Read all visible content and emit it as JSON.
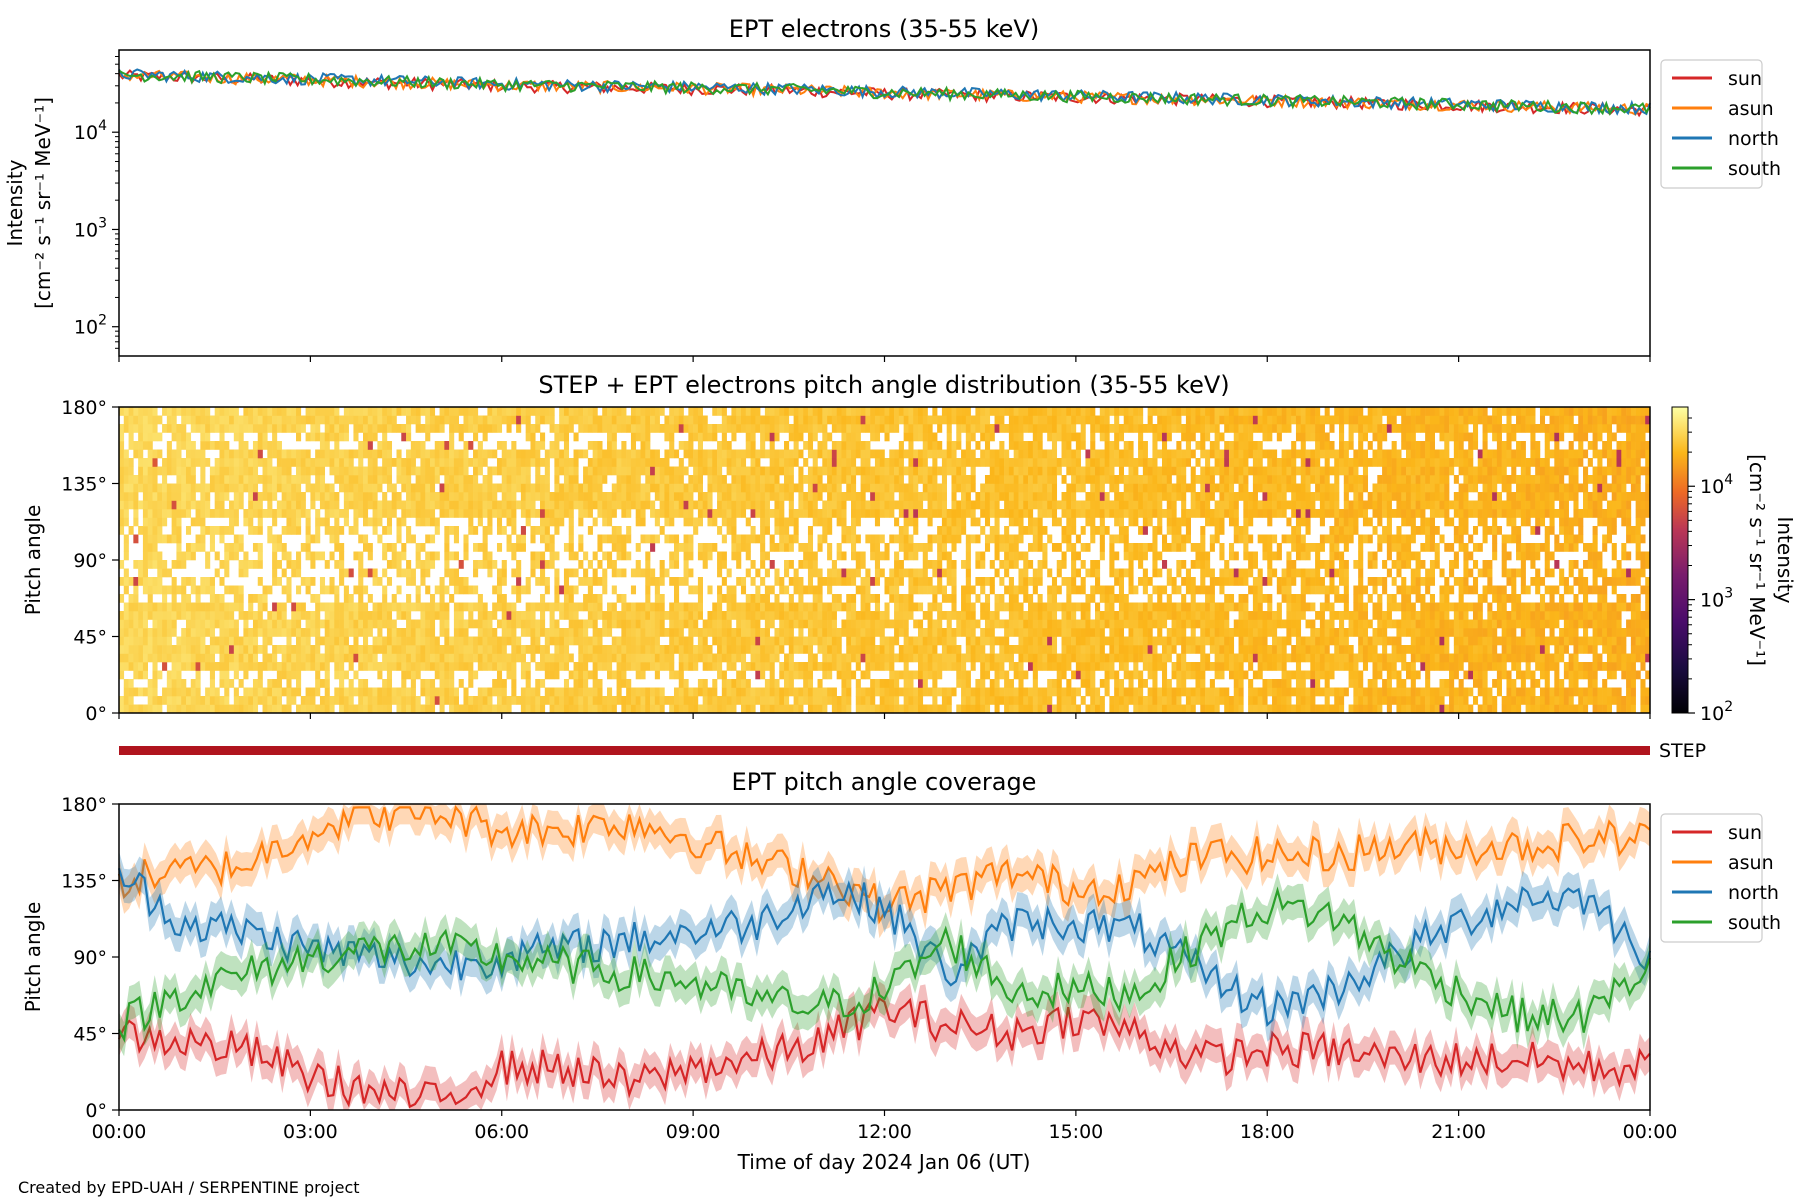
{
  "colors": {
    "sun": "#d62728",
    "asun": "#ff7f0e",
    "north": "#1f77b4",
    "south": "#2ca02c",
    "step_bar": "#b0141e"
  },
  "footer": "Created by EPD-UAH / SERPENTINE project",
  "chart_data": [
    {
      "type": "line",
      "title": "EPT electrons (35-55 keV)",
      "ylabel_line1": "Intensity",
      "ylabel_line2": "[cm⁻² s⁻¹ sr⁻¹ MeV⁻¹]",
      "yscale": "log",
      "ylim": [
        50,
        70000
      ],
      "y_ticks": [
        {
          "value": 100,
          "base": "10",
          "exp": "2"
        },
        {
          "value": 1000,
          "base": "10",
          "exp": "3"
        },
        {
          "value": 10000,
          "base": "10",
          "exp": "4"
        }
      ],
      "x_hours": [
        0,
        1.5,
        3,
        4.5,
        6,
        7.5,
        9,
        10.5,
        12,
        13.5,
        15,
        16.5,
        18,
        19.5,
        21,
        22.5,
        24
      ],
      "series": [
        {
          "name": "sun",
          "values": [
            38000,
            36000,
            34000,
            32000,
            30000,
            29000,
            28000,
            27000,
            25000,
            24000,
            23000,
            22000,
            21000,
            20000,
            19000,
            18000,
            17000
          ]
        },
        {
          "name": "asun",
          "values": [
            38500,
            36500,
            34500,
            32500,
            30500,
            29500,
            28500,
            27200,
            25500,
            24300,
            23200,
            22200,
            21200,
            20200,
            19200,
            18200,
            17300
          ]
        },
        {
          "name": "north",
          "values": [
            39500,
            37500,
            35500,
            33500,
            31500,
            30200,
            29200,
            28000,
            26200,
            25000,
            23800,
            22700,
            21700,
            20600,
            19600,
            18600,
            17700
          ]
        },
        {
          "name": "south",
          "values": [
            39000,
            37000,
            35000,
            33000,
            31000,
            29800,
            28800,
            27600,
            25800,
            24600,
            23500,
            22400,
            21400,
            20400,
            19400,
            18400,
            17500
          ]
        }
      ],
      "legend": [
        "sun",
        "asun",
        "north",
        "south"
      ],
      "legend_position": "outside right, top"
    },
    {
      "type": "heatmap",
      "title": "STEP + EPT electrons pitch angle distribution (35-55 keV)",
      "ylabel": "Pitch angle",
      "ylim": [
        0,
        180
      ],
      "y_ticks": [
        "0°",
        "45°",
        "90°",
        "135°",
        "180°"
      ],
      "colorbar": {
        "label_line1": "Intensity",
        "label_line2": "[cm⁻² s⁻¹ sr⁻¹ MeV⁻¹]",
        "scale": "log",
        "range": [
          100,
          50000
        ],
        "ticks": [
          {
            "value": 100,
            "base": "10",
            "exp": "2"
          },
          {
            "value": 1000,
            "base": "10",
            "exp": "3"
          },
          {
            "value": 10000,
            "base": "10",
            "exp": "4"
          }
        ]
      },
      "approx_intensity_start": 30000,
      "approx_intensity_end": 18000
    },
    {
      "type": "bar",
      "label": "STEP",
      "coverage_hours": [
        0,
        24
      ]
    },
    {
      "type": "line",
      "title": "EPT pitch angle coverage",
      "ylabel": "Pitch angle",
      "xlabel": "Time of day 2024 Jan 06 (UT)",
      "ylim": [
        0,
        180
      ],
      "y_ticks": [
        "0°",
        "45°",
        "90°",
        "135°",
        "180°"
      ],
      "x_ticks": [
        "00:00",
        "03:00",
        "06:00",
        "09:00",
        "12:00",
        "15:00",
        "18:00",
        "21:00",
        "00:00"
      ],
      "x_hours": [
        0,
        1,
        2,
        3,
        4,
        5,
        6,
        7,
        8,
        9,
        10,
        11,
        12,
        13,
        14,
        15,
        16,
        17,
        18,
        19,
        20,
        21,
        22,
        23,
        24
      ],
      "series": [
        {
          "name": "sun",
          "values": [
            45,
            40,
            35,
            20,
            10,
            5,
            25,
            25,
            15,
            25,
            30,
            40,
            60,
            50,
            45,
            55,
            45,
            30,
            35,
            35,
            30,
            30,
            30,
            25,
            25
          ]
        },
        {
          "name": "asun",
          "values": [
            135,
            140,
            145,
            165,
            175,
            175,
            165,
            165,
            170,
            160,
            145,
            140,
            120,
            130,
            140,
            130,
            135,
            150,
            150,
            150,
            155,
            155,
            155,
            160,
            160
          ]
        },
        {
          "name": "north",
          "values": [
            140,
            110,
            105,
            95,
            90,
            85,
            90,
            95,
            100,
            105,
            110,
            130,
            120,
            80,
            110,
            110,
            105,
            80,
            60,
            70,
            90,
            110,
            125,
            125,
            90
          ]
        },
        {
          "name": "south",
          "values": [
            50,
            70,
            80,
            90,
            95,
            95,
            90,
            85,
            80,
            75,
            65,
            60,
            70,
            100,
            70,
            70,
            70,
            100,
            120,
            115,
            90,
            70,
            55,
            55,
            85
          ]
        }
      ],
      "band_halfwidth_deg": 10,
      "legend": [
        "sun",
        "asun",
        "north",
        "south"
      ],
      "legend_position": "outside right, top"
    }
  ]
}
